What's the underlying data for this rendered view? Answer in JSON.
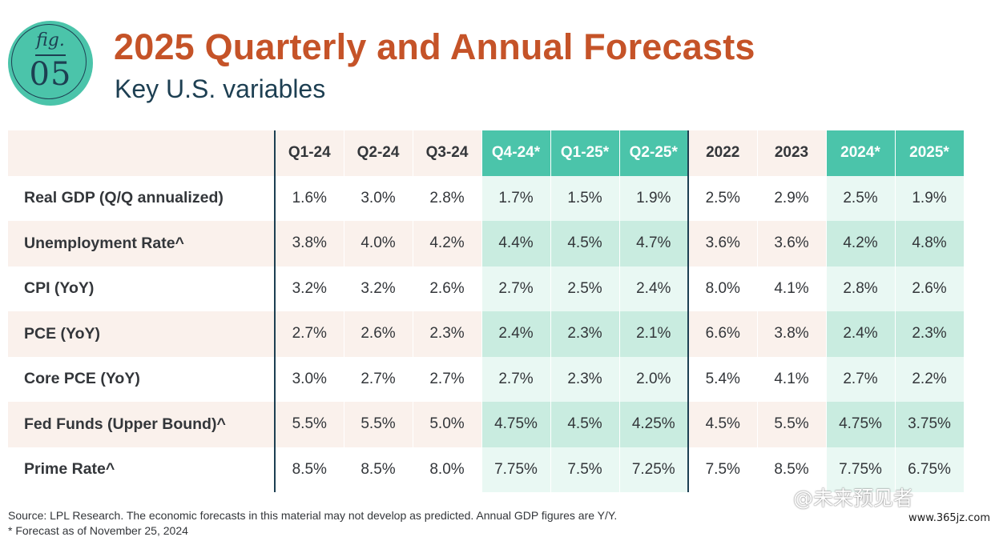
{
  "badge": {
    "fig": "fig.",
    "num": "05"
  },
  "title": "2025 Quarterly and Annual Forecasts",
  "subtitle": "Key U.S. variables",
  "colors": {
    "title": "#c55328",
    "navy": "#1d3f52",
    "teal": "#4bc4aa",
    "forecast_light": "#e9f8f3",
    "forecast_dark": "#c9ece0",
    "row_shade": "#faf1ec"
  },
  "table": {
    "columns": [
      "Q1-24",
      "Q2-24",
      "Q3-24",
      "Q4-24*",
      "Q1-25*",
      "Q2-25*",
      "2022",
      "2023",
      "2024*",
      "2025*"
    ],
    "rows": [
      {
        "label": "Real GDP (Q/Q annualized)",
        "values": [
          "1.6%",
          "3.0%",
          "2.8%",
          "1.7%",
          "1.5%",
          "1.9%",
          "2.5%",
          "2.9%",
          "2.5%",
          "1.9%"
        ]
      },
      {
        "label": "Unemployment Rate^",
        "values": [
          "3.8%",
          "4.0%",
          "4.2%",
          "4.4%",
          "4.5%",
          "4.7%",
          "3.6%",
          "3.6%",
          "4.2%",
          "4.8%"
        ]
      },
      {
        "label": "CPI (YoY)",
        "values": [
          "3.2%",
          "3.2%",
          "2.6%",
          "2.7%",
          "2.5%",
          "2.4%",
          "8.0%",
          "4.1%",
          "2.8%",
          "2.6%"
        ]
      },
      {
        "label": "PCE (YoY)",
        "values": [
          "2.7%",
          "2.6%",
          "2.3%",
          "2.4%",
          "2.3%",
          "2.1%",
          "6.6%",
          "3.8%",
          "2.4%",
          "2.3%"
        ]
      },
      {
        "label": "Core PCE (YoY)",
        "values": [
          "3.0%",
          "2.7%",
          "2.7%",
          "2.7%",
          "2.3%",
          "2.0%",
          "5.4%",
          "4.1%",
          "2.7%",
          "2.2%"
        ]
      },
      {
        "label": "Fed Funds (Upper Bound)^",
        "values": [
          "5.5%",
          "5.5%",
          "5.0%",
          "4.75%",
          "4.5%",
          "4.25%",
          "4.5%",
          "5.5%",
          "4.75%",
          "3.75%"
        ]
      },
      {
        "label": "Prime Rate^",
        "values": [
          "8.5%",
          "8.5%",
          "8.0%",
          "7.75%",
          "7.5%",
          "7.25%",
          "7.5%",
          "8.5%",
          "7.75%",
          "6.75%"
        ]
      }
    ]
  },
  "source": "Source: LPL Research. The economic forecasts in this material may not develop as predicted. Annual GDP figures are Y/Y.",
  "note": "* Forecast as of November 25, 2024",
  "watermark": {
    "text": "@未来预见者",
    "url": "www.365jz.com"
  }
}
